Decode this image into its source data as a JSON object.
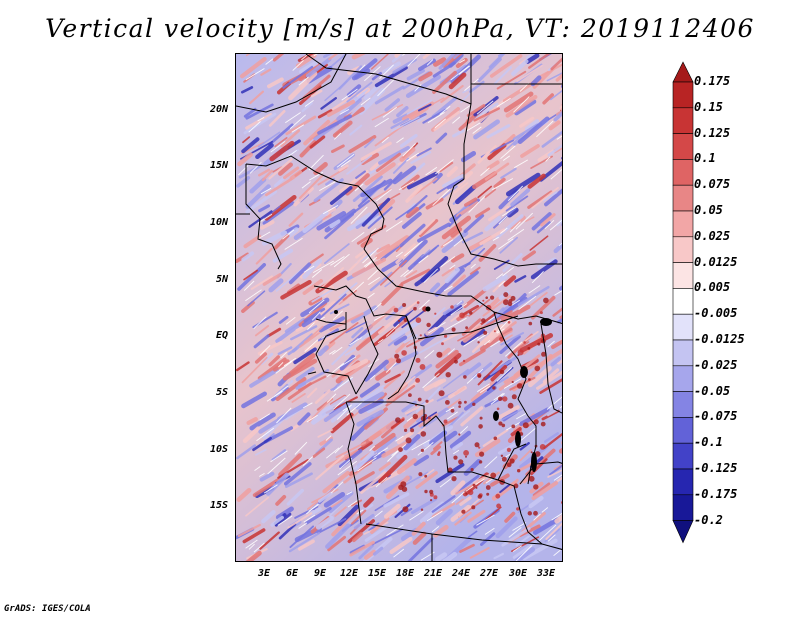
{
  "title": "Vertical velocity [m/s] at 200hPa, VT: 2019112406",
  "credit": "GrADS: IGES/COLA",
  "lat_labels": [
    "20N",
    "15N",
    "10N",
    "5N",
    "EQ",
    "5S",
    "10S",
    "15S"
  ],
  "lon_labels": [
    "3E",
    "6E",
    "9E",
    "12E",
    "15E",
    "18E",
    "21E",
    "24E",
    "27E",
    "30E",
    "33E"
  ],
  "colorbar": {
    "labels": [
      "0.175",
      "0.15",
      "0.125",
      "0.1",
      "0.075",
      "0.05",
      "0.025",
      "0.0125",
      "0.005",
      "-0.005",
      "-0.0125",
      "-0.025",
      "-0.05",
      "-0.075",
      "-0.1",
      "-0.125",
      "-0.175",
      "-0.2"
    ],
    "colors": [
      "#a51a1a",
      "#b82424",
      "#c83434",
      "#d44848",
      "#df6464",
      "#e88686",
      "#f2a6a6",
      "#f8c8c8",
      "#fce4e4",
      "#ffffff",
      "#e2e2fa",
      "#c4c4f2",
      "#a6a6ec",
      "#8484e4",
      "#6262d8",
      "#4242c8",
      "#2626b0",
      "#181898",
      "#10107e"
    ]
  }
}
